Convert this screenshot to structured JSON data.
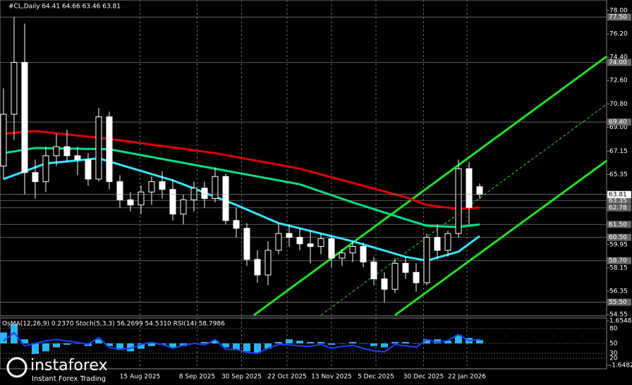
{
  "chart_data": {
    "type": "candlestick",
    "title": "#CL,Daily 64.41 64.66 63.46 63.81",
    "xlim": [
      -0.33,
      57
    ],
    "ylim": [
      54.55,
      78.0
    ],
    "yticks": [
      {
        "value": 78.0,
        "label": "78.00"
      },
      {
        "value": 76.2,
        "label": "76.20"
      },
      {
        "value": 74.4,
        "label": "74.40"
      },
      {
        "value": 72.6,
        "label": "72.60"
      },
      {
        "value": 70.8,
        "label": "70.80"
      },
      {
        "value": 69.0,
        "label": "69.00"
      },
      67.15,
      65.35,
      59.95,
      58.15,
      56.35,
      54.55
    ],
    "xticks": [
      {
        "value": 12.9,
        "label": "15 Aug 2025"
      },
      {
        "value": 18.3,
        "label": "8 Sep 2025"
      },
      {
        "value": 22.5,
        "label": "30 Sep 2025"
      },
      {
        "value": 26.8,
        "label": "22 Oct 2025"
      },
      {
        "value": 31.0,
        "label": "13 Nov 2025"
      },
      {
        "value": 35.2,
        "label": "5 Dec 2025"
      },
      {
        "value": 39.7,
        "label": "30 Dec 2025"
      },
      {
        "value": 43.8,
        "label": "22 Jan 2026"
      }
    ],
    "levels": [
      {
        "value": 77.5,
        "label": "77.50"
      },
      {
        "value": 74.0,
        "label": "74.00"
      },
      {
        "value": 69.4,
        "label": "69.40"
      },
      63.35,
      62.78,
      {
        "value": 61.5,
        "label": "61.50"
      },
      {
        "value": 60.5,
        "label": "60.50"
      },
      {
        "value": 58.7,
        "label": "58.70"
      },
      {
        "value": 55.5,
        "label": "55.50"
      }
    ],
    "last_price": 63.81,
    "open": [
      66.0,
      70,
      74,
      65.5,
      64.8,
      66.8,
      67.5,
      66.8,
      66.5,
      65,
      69.8,
      64.8,
      63.4,
      63,
      64,
      64.8,
      64.2,
      62.3,
      63.4,
      64.3,
      63.5,
      65.2,
      61.8,
      61.2,
      58.8,
      57.6,
      59.5,
      60.8,
      60.5,
      60,
      59.8,
      60.4,
      58.9,
      59.3,
      59.8,
      58.6,
      57.3,
      56.5,
      58.5,
      57.8,
      57.0,
      60.5,
      59.5,
      60.8,
      65.8,
      64.41
    ],
    "high": [
      72,
      77.5,
      77,
      66.5,
      67.5,
      68.5,
      68.8,
      67.5,
      67,
      70.5,
      70.2,
      65.3,
      64,
      64.5,
      65.2,
      65.6,
      65,
      63.8,
      64.8,
      64.8,
      65.9,
      65.4,
      62.8,
      61.6,
      59.5,
      60.2,
      61.6,
      61.5,
      61.2,
      61,
      60.8,
      60.6,
      59.6,
      60.2,
      60.1,
      59,
      57.8,
      58.9,
      59,
      58.5,
      60.8,
      61.5,
      61,
      66.5,
      66.3,
      64.66
    ],
    "low": [
      65,
      68,
      63.8,
      63.5,
      64,
      66,
      66.3,
      65.3,
      64.5,
      64.8,
      64.2,
      62.8,
      62.5,
      62.3,
      63,
      63.5,
      61.8,
      61.5,
      62.5,
      62.8,
      63.2,
      61.5,
      60.5,
      58.3,
      57.0,
      56.8,
      59.2,
      59.8,
      59.5,
      58.5,
      59.2,
      58.2,
      58.3,
      58.6,
      58.2,
      56.8,
      55.5,
      56.2,
      57.3,
      56.3,
      56.8,
      58.8,
      59,
      60.5,
      61.5,
      63.46
    ],
    "close": [
      70,
      74,
      65.5,
      64.8,
      66.8,
      67.5,
      66.8,
      66.5,
      65,
      69.8,
      64.8,
      63.4,
      63,
      64,
      64.8,
      64.2,
      62.3,
      63.4,
      64.3,
      63.5,
      65.2,
      61.8,
      61.2,
      58.8,
      57.6,
      59.5,
      60.8,
      60.5,
      60.0,
      59.8,
      60.4,
      58.9,
      59.3,
      59.8,
      58.6,
      57.3,
      56.5,
      58.5,
      57.8,
      57.0,
      60.5,
      59.5,
      60.8,
      65.8,
      62.8,
      63.81
    ],
    "series": [
      {
        "color": "#e00000",
        "x": [
          0,
          3,
          10,
          20,
          28,
          33,
          38,
          40,
          43,
          45
        ],
        "values": [
          68.5,
          68.7,
          68.1,
          67.0,
          65.8,
          64.7,
          63.6,
          63.0,
          62.7,
          62.8
        ]
      },
      {
        "color": "#00e08a",
        "x": [
          0,
          3,
          10,
          20,
          28,
          33,
          38,
          40,
          43,
          45
        ],
        "values": [
          67.0,
          67.4,
          67.3,
          65.8,
          64.6,
          63.2,
          61.9,
          61.4,
          61.3,
          61.5
        ]
      },
      {
        "color": "#33e6ff",
        "x": [
          0,
          4,
          9,
          16,
          22,
          26,
          33,
          38,
          40,
          43,
          45
        ],
        "values": [
          65.0,
          66.2,
          66.6,
          64.9,
          63.0,
          61.6,
          60.2,
          59.0,
          58.7,
          59.4,
          60.6
        ]
      }
    ],
    "trendlines": [
      {
        "color": "#22e022",
        "x": [
          23.67,
          57
        ],
        "values": [
          54.5,
          74.46
        ]
      },
      {
        "color": "#22e022",
        "x": [
          37,
          57
        ],
        "values": [
          54.5,
          66.41
        ]
      },
      {
        "color": "#22e022",
        "dashed": true,
        "x": [
          30,
          57
        ],
        "values": [
          54.5,
          70.76
        ]
      }
    ],
    "indicator": {
      "title": "OsMA(12,26,9) 0.2370 Stoch(5,3,3) 56.2699 54.5310 RSI(14) 58.7986",
      "osma_lim": [
        -1.6482,
        1.6548
      ],
      "osma_ticks": [
        {
          "value": 1.6548,
          "label": "1.6548"
        },
        {
          "value": -1.6482,
          "label": "-1.6482"
        }
      ],
      "rsi_lim": [
        20,
        80
      ],
      "rsi_ticks": [
        80,
        50,
        30,
        20
      ],
      "osma": [
        0.8,
        1.4,
        0.3,
        -0.8,
        -0.6,
        -0.3,
        -0.1,
        0,
        -0.2,
        0.3,
        -0.2,
        -0.5,
        -0.6,
        -0.4,
        -0.2,
        -0.1,
        -0.3,
        -0.2,
        0,
        0.1,
        0.2,
        -0.3,
        -0.5,
        -0.6,
        -0.7,
        -0.4,
        0.1,
        0.3,
        0.2,
        0.1,
        0.1,
        -0.1,
        0,
        0.1,
        0,
        -0.2,
        -0.3,
        0.1,
        0.1,
        0,
        0.3,
        0.3,
        0.2,
        0.6,
        0.4,
        0.237
      ],
      "rsi": [
        55,
        72,
        45,
        50,
        55,
        58,
        55,
        52,
        48,
        62,
        42,
        38,
        40,
        48,
        52,
        48,
        40,
        46,
        50,
        47,
        58,
        38,
        38,
        32,
        30,
        40,
        48,
        47,
        45,
        44,
        48,
        40,
        44,
        46,
        40,
        35,
        33,
        48,
        45,
        42,
        58,
        52,
        56,
        68,
        55,
        58.7986
      ]
    },
    "logo": {
      "name": "instaforex",
      "tagline": "Instant Forex Trading"
    }
  }
}
